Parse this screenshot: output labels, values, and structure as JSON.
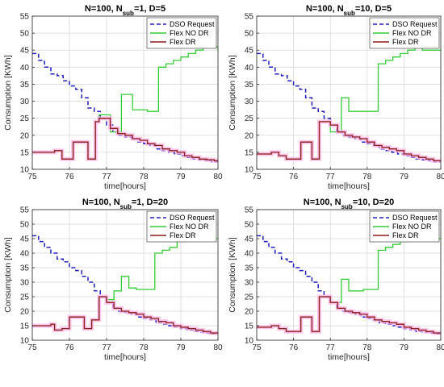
{
  "colors": {
    "dso": "#1f1fbf",
    "flex_no_dr": "#33cc33",
    "flex_dr": "#8b1a1a",
    "flex_dr_band": "#ffb3e6",
    "grid": "#d9d9d9",
    "axis": "#262626"
  },
  "chart_data": [
    {
      "type": "line",
      "title_parts": {
        "prefix": "N=100, N",
        "sub": "sub",
        "suffix": "=1, D=5"
      },
      "xlabel": "time[hours]",
      "ylabel": "Consumption [KWh]",
      "xlim": [
        75,
        80
      ],
      "ylim": [
        10,
        55
      ],
      "xticks": [
        75,
        76,
        77,
        78,
        79,
        80
      ],
      "yticks": [
        10,
        15,
        20,
        25,
        30,
        35,
        40,
        45,
        50,
        55
      ],
      "grid": true,
      "legend": "top-right",
      "series": [
        {
          "name": "DSO Request",
          "style": "dashed",
          "color_key": "dso",
          "x": [
            75,
            75.17,
            75.33,
            75.5,
            75.67,
            75.83,
            76,
            76.17,
            76.33,
            76.5,
            76.67,
            76.83,
            77,
            77.17,
            77.33,
            77.5,
            77.67,
            77.83,
            78,
            78.17,
            78.33,
            78.5,
            78.67,
            78.83,
            79,
            79.17,
            79.33,
            79.5,
            79.67,
            79.83,
            80
          ],
          "y": [
            44,
            42,
            40,
            38,
            37.5,
            36,
            34.5,
            33.5,
            31,
            28,
            27,
            25,
            23,
            21,
            20,
            19.5,
            19,
            18,
            17.5,
            17,
            16,
            15.5,
            15,
            14.5,
            14,
            13.5,
            13,
            12.8,
            12.5,
            12.2,
            12
          ]
        },
        {
          "name": "Flex NO DR",
          "style": "solid",
          "color_key": "flex_no_dr",
          "x": [
            75,
            75.5,
            75.6,
            75.8,
            76,
            76.1,
            76.4,
            76.5,
            76.7,
            76.8,
            77,
            77.1,
            77.3,
            77.4,
            77.6,
            77.7,
            78,
            78.1,
            78.3,
            78.4,
            78.6,
            78.8,
            79,
            79.2,
            79.4,
            79.6,
            79.8,
            80
          ],
          "y": [
            15,
            15,
            15.5,
            13,
            13,
            18,
            18,
            13,
            24,
            26,
            26,
            21,
            21,
            32,
            32,
            27.5,
            27.5,
            27,
            27,
            40,
            41,
            42,
            43,
            44,
            45,
            46,
            46,
            45
          ]
        },
        {
          "name": "Flex DR",
          "style": "solid",
          "color_key": "flex_dr",
          "x": [
            75,
            75.5,
            75.6,
            75.8,
            76,
            76.1,
            76.4,
            76.5,
            76.7,
            76.8,
            77,
            77.1,
            77.3,
            77.5,
            77.7,
            77.9,
            78.1,
            78.3,
            78.5,
            78.7,
            78.9,
            79.1,
            79.3,
            79.5,
            79.7,
            79.9,
            80
          ],
          "y": [
            15,
            15,
            15.5,
            13,
            13,
            18,
            18,
            13,
            24,
            25,
            25,
            22,
            20.5,
            20,
            19,
            18.5,
            17.5,
            17,
            16,
            15.5,
            15,
            14,
            13.5,
            13,
            12.8,
            12.5,
            12.2
          ]
        }
      ]
    },
    {
      "type": "line",
      "title_parts": {
        "prefix": "N=100, N",
        "sub": "sub",
        "suffix": "=10, D=5"
      },
      "xlabel": "time[hours]",
      "ylabel": "Consumption [KWh]",
      "xlim": [
        75,
        80
      ],
      "ylim": [
        10,
        55
      ],
      "xticks": [
        75,
        76,
        77,
        78,
        79,
        80
      ],
      "yticks": [
        10,
        15,
        20,
        25,
        30,
        35,
        40,
        45,
        50,
        55
      ],
      "grid": true,
      "legend": "top-right",
      "series": [
        {
          "name": "DSO Request",
          "style": "dashed",
          "color_key": "dso",
          "x": [
            75,
            75.17,
            75.33,
            75.5,
            75.67,
            75.83,
            76,
            76.17,
            76.33,
            76.5,
            76.67,
            76.83,
            77,
            77.17,
            77.33,
            77.5,
            77.67,
            77.83,
            78,
            78.17,
            78.33,
            78.5,
            78.67,
            78.83,
            79,
            79.17,
            79.33,
            79.5,
            79.67,
            79.83,
            80
          ],
          "y": [
            44,
            42,
            40,
            38,
            37.5,
            36,
            34.5,
            33.5,
            31,
            28,
            27,
            25,
            23,
            21,
            20,
            19.5,
            19,
            18,
            17.5,
            17,
            16,
            15.5,
            15,
            14.5,
            14,
            13.5,
            13,
            12.8,
            12.5,
            12.2,
            12
          ]
        },
        {
          "name": "Flex NO DR",
          "style": "solid",
          "color_key": "flex_no_dr",
          "x": [
            75,
            75.3,
            75.4,
            75.6,
            75.8,
            76,
            76.2,
            76.4,
            76.5,
            76.7,
            76.9,
            77,
            77.2,
            77.3,
            77.5,
            77.7,
            77.9,
            78,
            78.2,
            78.3,
            78.5,
            78.7,
            78.9,
            79.1,
            79.3,
            79.5,
            79.7,
            80
          ],
          "y": [
            14.5,
            14.5,
            15,
            14,
            13,
            13,
            18,
            18,
            13,
            24,
            24,
            21,
            21,
            31,
            27,
            27,
            27,
            27,
            27,
            41,
            42,
            43,
            44,
            45,
            46,
            45,
            45,
            45
          ]
        },
        {
          "name": "Flex DR",
          "style": "solid",
          "color_key": "flex_dr",
          "x": [
            75,
            75.3,
            75.4,
            75.6,
            75.8,
            76,
            76.2,
            76.4,
            76.5,
            76.7,
            76.9,
            77,
            77.2,
            77.4,
            77.6,
            77.8,
            78,
            78.2,
            78.4,
            78.6,
            78.8,
            79,
            79.2,
            79.4,
            79.6,
            79.8,
            80
          ],
          "y": [
            14.5,
            14.5,
            15,
            14,
            13,
            13,
            18,
            18,
            13,
            24,
            24,
            23,
            21,
            20,
            19.5,
            19,
            18,
            17,
            16.5,
            16,
            15.5,
            14.5,
            14,
            13.5,
            13,
            12.5,
            12.2
          ]
        }
      ]
    },
    {
      "type": "line",
      "title_parts": {
        "prefix": "N=100, N",
        "sub": "sub",
        "suffix": "=1, D=20"
      },
      "xlabel": "time[hours]",
      "ylabel": "Consumption [KWh]",
      "xlim": [
        75,
        80
      ],
      "ylim": [
        10,
        55
      ],
      "xticks": [
        75,
        76,
        77,
        78,
        79,
        80
      ],
      "yticks": [
        10,
        15,
        20,
        25,
        30,
        35,
        40,
        45,
        50,
        55
      ],
      "grid": true,
      "legend": "top-right",
      "series": [
        {
          "name": "DSO Request",
          "style": "dashed",
          "color_key": "dso",
          "x": [
            75,
            75.17,
            75.33,
            75.5,
            75.67,
            75.83,
            76,
            76.17,
            76.33,
            76.5,
            76.67,
            76.83,
            77,
            77.17,
            77.33,
            77.5,
            77.67,
            77.83,
            78,
            78.17,
            78.33,
            78.5,
            78.67,
            78.83,
            79,
            79.17,
            79.33,
            79.5,
            79.67,
            79.83,
            80
          ],
          "y": [
            46,
            44,
            42,
            40,
            38,
            37,
            35,
            34,
            32,
            30,
            27,
            25,
            23,
            21,
            20,
            19.5,
            19,
            18,
            17.5,
            17,
            16,
            15.5,
            15,
            14.5,
            14,
            13.5,
            13,
            12.8,
            12.5,
            12.2,
            12
          ]
        },
        {
          "name": "Flex NO DR",
          "style": "solid",
          "color_key": "flex_no_dr",
          "x": [
            75,
            75.4,
            75.5,
            75.6,
            75.8,
            76,
            76.2,
            76.4,
            76.5,
            76.6,
            76.8,
            76.9,
            77,
            77.2,
            77.4,
            77.5,
            77.6,
            77.8,
            78,
            78.2,
            78.3,
            78.5,
            78.7,
            78.9,
            79.1,
            79.3,
            79.5,
            79.8,
            80
          ],
          "y": [
            15,
            15,
            15.5,
            13.5,
            14,
            18,
            18,
            14,
            14,
            17,
            25,
            25,
            24,
            27,
            32,
            32,
            28,
            27.5,
            27.5,
            27.5,
            40,
            41,
            42,
            44,
            45,
            46,
            46,
            45,
            45
          ]
        },
        {
          "name": "Flex DR",
          "style": "solid",
          "color_key": "flex_dr",
          "x": [
            75,
            75.4,
            75.5,
            75.6,
            75.8,
            76,
            76.2,
            76.4,
            76.5,
            76.6,
            76.8,
            76.9,
            77,
            77.2,
            77.4,
            77.6,
            77.8,
            78,
            78.2,
            78.4,
            78.6,
            78.8,
            79,
            79.2,
            79.4,
            79.6,
            79.8,
            80
          ],
          "y": [
            15,
            15,
            15.5,
            13.5,
            14,
            18,
            18,
            14,
            14,
            17,
            25,
            25,
            23,
            21,
            20,
            19.5,
            19,
            18,
            17.5,
            16.5,
            16,
            15,
            14.5,
            14,
            13.5,
            13,
            12.5,
            12.2
          ]
        }
      ]
    },
    {
      "type": "line",
      "title_parts": {
        "prefix": "N=100, N",
        "sub": "sub",
        "suffix": "=10, D=20"
      },
      "xlabel": "time[hours]",
      "ylabel": "Consumption [KWh]",
      "xlim": [
        75,
        80
      ],
      "ylim": [
        10,
        55
      ],
      "xticks": [
        75,
        76,
        77,
        78,
        79,
        80
      ],
      "yticks": [
        10,
        15,
        20,
        25,
        30,
        35,
        40,
        45,
        50,
        55
      ],
      "grid": true,
      "legend": "top-right",
      "series": [
        {
          "name": "DSO Request",
          "style": "dashed",
          "color_key": "dso",
          "x": [
            75,
            75.17,
            75.33,
            75.5,
            75.67,
            75.83,
            76,
            76.17,
            76.33,
            76.5,
            76.67,
            76.83,
            77,
            77.17,
            77.33,
            77.5,
            77.67,
            77.83,
            78,
            78.17,
            78.33,
            78.5,
            78.67,
            78.83,
            79,
            79.17,
            79.33,
            79.5,
            79.67,
            79.83,
            80
          ],
          "y": [
            46,
            44,
            42,
            40,
            38,
            37,
            35,
            34,
            32,
            30,
            27,
            25,
            23,
            21,
            20,
            19.5,
            19,
            18,
            17.5,
            17,
            16,
            15.5,
            15,
            14.5,
            14,
            13.5,
            13,
            12.8,
            12.5,
            12.2,
            12
          ]
        },
        {
          "name": "Flex NO DR",
          "style": "solid",
          "color_key": "flex_no_dr",
          "x": [
            75,
            75.3,
            75.4,
            75.6,
            75.8,
            76,
            76.2,
            76.4,
            76.5,
            76.7,
            76.9,
            77,
            77.2,
            77.3,
            77.5,
            77.7,
            77.9,
            78,
            78.2,
            78.3,
            78.5,
            78.7,
            78.9,
            79.1,
            79.3,
            79.5,
            79.7,
            80
          ],
          "y": [
            14.5,
            14.5,
            15,
            14,
            13,
            13,
            18,
            18,
            13,
            25,
            25,
            23,
            23,
            31,
            27,
            27,
            27.5,
            27.5,
            27.5,
            41,
            42,
            43,
            44,
            45,
            46,
            45,
            45,
            45
          ]
        },
        {
          "name": "Flex DR",
          "style": "solid",
          "color_key": "flex_dr",
          "x": [
            75,
            75.3,
            75.4,
            75.6,
            75.8,
            76,
            76.2,
            76.4,
            76.5,
            76.7,
            76.9,
            77,
            77.2,
            77.4,
            77.6,
            77.8,
            78,
            78.2,
            78.4,
            78.6,
            78.8,
            79,
            79.2,
            79.4,
            79.6,
            79.8,
            80
          ],
          "y": [
            14.5,
            14.5,
            15,
            14,
            13,
            13,
            18,
            18,
            13,
            25,
            25,
            23,
            21,
            20,
            19.5,
            19,
            18,
            17,
            16.5,
            16,
            15.5,
            14.5,
            14,
            13.5,
            13,
            12.5,
            12.2
          ]
        }
      ]
    }
  ]
}
